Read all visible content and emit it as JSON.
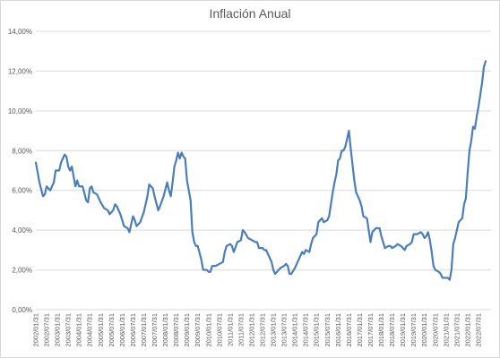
{
  "chart_data": {
    "type": "line",
    "title": "Inflación Anual",
    "xlabel": "",
    "ylabel": "",
    "ylim": [
      0,
      14
    ],
    "grid": true,
    "legend": "none",
    "y_ticks": [
      {
        "value": 0,
        "label": "0,00%"
      },
      {
        "value": 2,
        "label": "2,00%"
      },
      {
        "value": 4,
        "label": "4,00%"
      },
      {
        "value": 6,
        "label": "6,00%"
      },
      {
        "value": 8,
        "label": "8,00%"
      },
      {
        "value": 10,
        "label": "10,00%"
      },
      {
        "value": 12,
        "label": "12,00%"
      },
      {
        "value": 14,
        "label": "14,00%"
      }
    ],
    "x_start": "2002/01",
    "x_end": "2022/08",
    "x_tick_labels": [
      "2002/01/31",
      "2002/07/31",
      "2003/01/31",
      "2003/07/31",
      "2004/01/31",
      "2004/07/31",
      "2005/01/31",
      "2005/07/31",
      "2006/01/31",
      "2006/07/31",
      "2007/01/31",
      "2007/07/31",
      "2008/01/31",
      "2008/07/31",
      "2009/01/31",
      "2009/07/31",
      "2010/01/31",
      "2010/07/31",
      "2011/01/31",
      "2011/07/31",
      "2012/01/31",
      "2012/07/31",
      "2013/01/31",
      "2013/07/31",
      "2014/01/31",
      "2014/07/31",
      "2015/01/31",
      "2015/07/31",
      "2016/01/31",
      "2016/07/31",
      "2017/01/31",
      "2017/07/31",
      "2018/01/31",
      "2018/07/31",
      "2019/01/31",
      "2019/07/31",
      "2020/01/31",
      "2020/07/31",
      "2021/01/31",
      "2021/07/31",
      "2022/01/31",
      "2022/07/31"
    ],
    "series": [
      {
        "color": "#4a7ebb",
        "points": [
          [
            "2002/01",
            7.4
          ],
          [
            "2002/03",
            6.4
          ],
          [
            "2002/05",
            5.7
          ],
          [
            "2002/06",
            5.8
          ],
          [
            "2002/07",
            6.2
          ],
          [
            "2002/09",
            6.0
          ],
          [
            "2002/11",
            6.4
          ],
          [
            "2002/12",
            7.0
          ],
          [
            "2003/02",
            7.0
          ],
          [
            "2003/03",
            7.4
          ],
          [
            "2003/05",
            7.8
          ],
          [
            "2003/06",
            7.7
          ],
          [
            "2003/07",
            7.2
          ],
          [
            "2003/08",
            7.0
          ],
          [
            "2003/09",
            7.2
          ],
          [
            "2003/11",
            6.2
          ],
          [
            "2003/12",
            6.5
          ],
          [
            "2004/01",
            6.2
          ],
          [
            "2004/03",
            6.2
          ],
          [
            "2004/05",
            5.5
          ],
          [
            "2004/06",
            5.4
          ],
          [
            "2004/07",
            6.1
          ],
          [
            "2004/08",
            6.2
          ],
          [
            "2004/09",
            5.9
          ],
          [
            "2004/11",
            5.8
          ],
          [
            "2005/01",
            5.4
          ],
          [
            "2005/03",
            5.1
          ],
          [
            "2005/05",
            5.0
          ],
          [
            "2005/06",
            4.8
          ],
          [
            "2005/08",
            5.0
          ],
          [
            "2005/09",
            5.3
          ],
          [
            "2005/10",
            5.2
          ],
          [
            "2005/12",
            4.8
          ],
          [
            "2006/02",
            4.2
          ],
          [
            "2006/04",
            4.1
          ],
          [
            "2006/05",
            3.9
          ],
          [
            "2006/07",
            4.7
          ],
          [
            "2006/08",
            4.5
          ],
          [
            "2006/09",
            4.2
          ],
          [
            "2006/11",
            4.4
          ],
          [
            "2007/01",
            4.9
          ],
          [
            "2007/03",
            5.7
          ],
          [
            "2007/04",
            6.3
          ],
          [
            "2007/06",
            6.1
          ],
          [
            "2007/07",
            5.7
          ],
          [
            "2007/09",
            5.0
          ],
          [
            "2007/10",
            5.2
          ],
          [
            "2007/12",
            5.7
          ],
          [
            "2008/02",
            6.4
          ],
          [
            "2008/03",
            6.0
          ],
          [
            "2008/04",
            5.7
          ],
          [
            "2008/05",
            6.4
          ],
          [
            "2008/06",
            7.2
          ],
          [
            "2008/07",
            7.5
          ],
          [
            "2008/08",
            7.9
          ],
          [
            "2008/09",
            7.6
          ],
          [
            "2008/10",
            7.9
          ],
          [
            "2008/11",
            7.7
          ],
          [
            "2008/12",
            7.6
          ],
          [
            "2009/01",
            6.5
          ],
          [
            "2009/03",
            5.5
          ],
          [
            "2009/04",
            3.9
          ],
          [
            "2009/05",
            3.4
          ],
          [
            "2009/06",
            3.2
          ],
          [
            "2009/07",
            3.2
          ],
          [
            "2009/09",
            2.5
          ],
          [
            "2009/10",
            2.0
          ],
          [
            "2009/12",
            2.0
          ],
          [
            "2010/01",
            1.9
          ],
          [
            "2010/02",
            1.9
          ],
          [
            "2010/03",
            2.2
          ],
          [
            "2010/05",
            2.2
          ],
          [
            "2010/07",
            2.3
          ],
          [
            "2010/09",
            2.4
          ],
          [
            "2010/10",
            2.9
          ],
          [
            "2010/11",
            3.2
          ],
          [
            "2011/01",
            3.3
          ],
          [
            "2011/02",
            3.2
          ],
          [
            "2011/03",
            2.9
          ],
          [
            "2011/05",
            3.4
          ],
          [
            "2011/07",
            3.5
          ],
          [
            "2011/08",
            4.0
          ],
          [
            "2011/09",
            3.9
          ],
          [
            "2011/11",
            3.6
          ],
          [
            "2012/01",
            3.5
          ],
          [
            "2012/03",
            3.4
          ],
          [
            "2012/04",
            3.4
          ],
          [
            "2012/05",
            3.1
          ],
          [
            "2012/07",
            3.1
          ],
          [
            "2012/08",
            3.0
          ],
          [
            "2012/09",
            3.0
          ],
          [
            "2012/11",
            2.6
          ],
          [
            "2012/12",
            2.4
          ],
          [
            "2013/01",
            2.0
          ],
          [
            "2013/02",
            1.8
          ],
          [
            "2013/03",
            1.9
          ],
          [
            "2013/05",
            2.1
          ],
          [
            "2013/07",
            2.2
          ],
          [
            "2013/08",
            2.3
          ],
          [
            "2013/09",
            2.2
          ],
          [
            "2013/10",
            1.8
          ],
          [
            "2013/11",
            1.8
          ],
          [
            "2014/01",
            2.1
          ],
          [
            "2014/03",
            2.5
          ],
          [
            "2014/05",
            2.9
          ],
          [
            "2014/06",
            2.8
          ],
          [
            "2014/07",
            3.0
          ],
          [
            "2014/09",
            2.9
          ],
          [
            "2014/10",
            3.3
          ],
          [
            "2014/11",
            3.6
          ],
          [
            "2015/01",
            3.8
          ],
          [
            "2015/02",
            4.4
          ],
          [
            "2015/04",
            4.6
          ],
          [
            "2015/05",
            4.4
          ],
          [
            "2015/07",
            4.5
          ],
          [
            "2015/08",
            4.7
          ],
          [
            "2015/09",
            5.3
          ],
          [
            "2015/10",
            5.9
          ],
          [
            "2015/11",
            6.4
          ],
          [
            "2015/12",
            6.8
          ],
          [
            "2016/01",
            7.5
          ],
          [
            "2016/02",
            7.6
          ],
          [
            "2016/03",
            8.0
          ],
          [
            "2016/04",
            8.0
          ],
          [
            "2016/05",
            8.2
          ],
          [
            "2016/06",
            8.6
          ],
          [
            "2016/07",
            9.0
          ],
          [
            "2016/08",
            8.1
          ],
          [
            "2016/09",
            7.3
          ],
          [
            "2016/10",
            6.5
          ],
          [
            "2016/11",
            5.9
          ],
          [
            "2017/01",
            5.5
          ],
          [
            "2017/02",
            5.2
          ],
          [
            "2017/03",
            4.7
          ],
          [
            "2017/05",
            4.6
          ],
          [
            "2017/06",
            4.0
          ],
          [
            "2017/07",
            3.4
          ],
          [
            "2017/08",
            3.9
          ],
          [
            "2017/10",
            4.1
          ],
          [
            "2017/11",
            4.1
          ],
          [
            "2017/12",
            4.1
          ],
          [
            "2018/01",
            3.7
          ],
          [
            "2018/02",
            3.4
          ],
          [
            "2018/03",
            3.1
          ],
          [
            "2018/05",
            3.2
          ],
          [
            "2018/06",
            3.2
          ],
          [
            "2018/07",
            3.1
          ],
          [
            "2018/09",
            3.2
          ],
          [
            "2018/10",
            3.3
          ],
          [
            "2018/12",
            3.2
          ],
          [
            "2019/01",
            3.1
          ],
          [
            "2019/02",
            3.0
          ],
          [
            "2019/03",
            3.2
          ],
          [
            "2019/05",
            3.3
          ],
          [
            "2019/06",
            3.4
          ],
          [
            "2019/07",
            3.8
          ],
          [
            "2019/09",
            3.8
          ],
          [
            "2019/11",
            3.9
          ],
          [
            "2019/12",
            3.8
          ],
          [
            "2020/01",
            3.6
          ],
          [
            "2020/02",
            3.7
          ],
          [
            "2020/03",
            3.9
          ],
          [
            "2020/04",
            3.5
          ],
          [
            "2020/05",
            2.9
          ],
          [
            "2020/06",
            2.2
          ],
          [
            "2020/07",
            2.0
          ],
          [
            "2020/09",
            1.9
          ],
          [
            "2020/10",
            1.8
          ],
          [
            "2020/11",
            1.6
          ],
          [
            "2020/12",
            1.6
          ],
          [
            "2021/01",
            1.6
          ],
          [
            "2021/02",
            1.6
          ],
          [
            "2021/03",
            1.5
          ],
          [
            "2021/04",
            2.0
          ],
          [
            "2021/05",
            3.3
          ],
          [
            "2021/06",
            3.6
          ],
          [
            "2021/07",
            4.0
          ],
          [
            "2021/08",
            4.4
          ],
          [
            "2021/09",
            4.5
          ],
          [
            "2021/10",
            4.6
          ],
          [
            "2021/11",
            5.3
          ],
          [
            "2021/12",
            5.6
          ],
          [
            "2022/01",
            6.9
          ],
          [
            "2022/02",
            8.0
          ],
          [
            "2022/03",
            8.5
          ],
          [
            "2022/04",
            9.2
          ],
          [
            "2022/05",
            9.1
          ],
          [
            "2022/06",
            9.7
          ],
          [
            "2022/07",
            10.2
          ],
          [
            "2022/08",
            10.8
          ],
          [
            "2022/09",
            11.4
          ],
          [
            "2022/10",
            12.2
          ],
          [
            "2022/11",
            12.5
          ]
        ]
      }
    ]
  }
}
